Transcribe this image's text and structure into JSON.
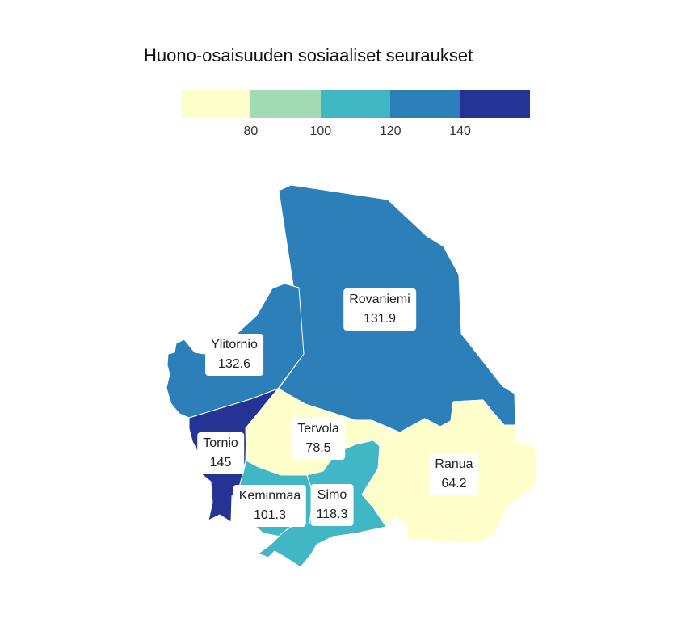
{
  "title": "Huono-osaisuuden sosiaaliset seuraukset",
  "legend": {
    "bins": [
      {
        "color": "#ffffcc"
      },
      {
        "color": "#a1dab4"
      },
      {
        "color": "#41b6c4"
      },
      {
        "color": "#2c7fb8"
      },
      {
        "color": "#253494"
      }
    ],
    "ticks": [
      {
        "label": "80",
        "index": 1
      },
      {
        "label": "100",
        "index": 2
      },
      {
        "label": "120",
        "index": 3
      },
      {
        "label": "140",
        "index": 4
      }
    ]
  },
  "regions": [
    {
      "key": "rovaniemi",
      "name": "Rovaniemi",
      "value": "131.9",
      "color": "#2c7fb8"
    },
    {
      "key": "ylitornio",
      "name": "Ylitornio",
      "value": "132.6",
      "color": "#2c7fb8"
    },
    {
      "key": "tornio",
      "name": "Tornio",
      "value": "145",
      "color": "#253494"
    },
    {
      "key": "tervola",
      "name": "Tervola",
      "value": "78.5",
      "color": "#ffffcc"
    },
    {
      "key": "ranua",
      "name": "Ranua",
      "value": "64.2",
      "color": "#ffffcc"
    },
    {
      "key": "keminmaa",
      "name": "Keminmaa",
      "value": "101.3",
      "color": "#41b6c4"
    },
    {
      "key": "simo",
      "name": "Simo",
      "value": "118.3",
      "color": "#41b6c4"
    }
  ]
}
